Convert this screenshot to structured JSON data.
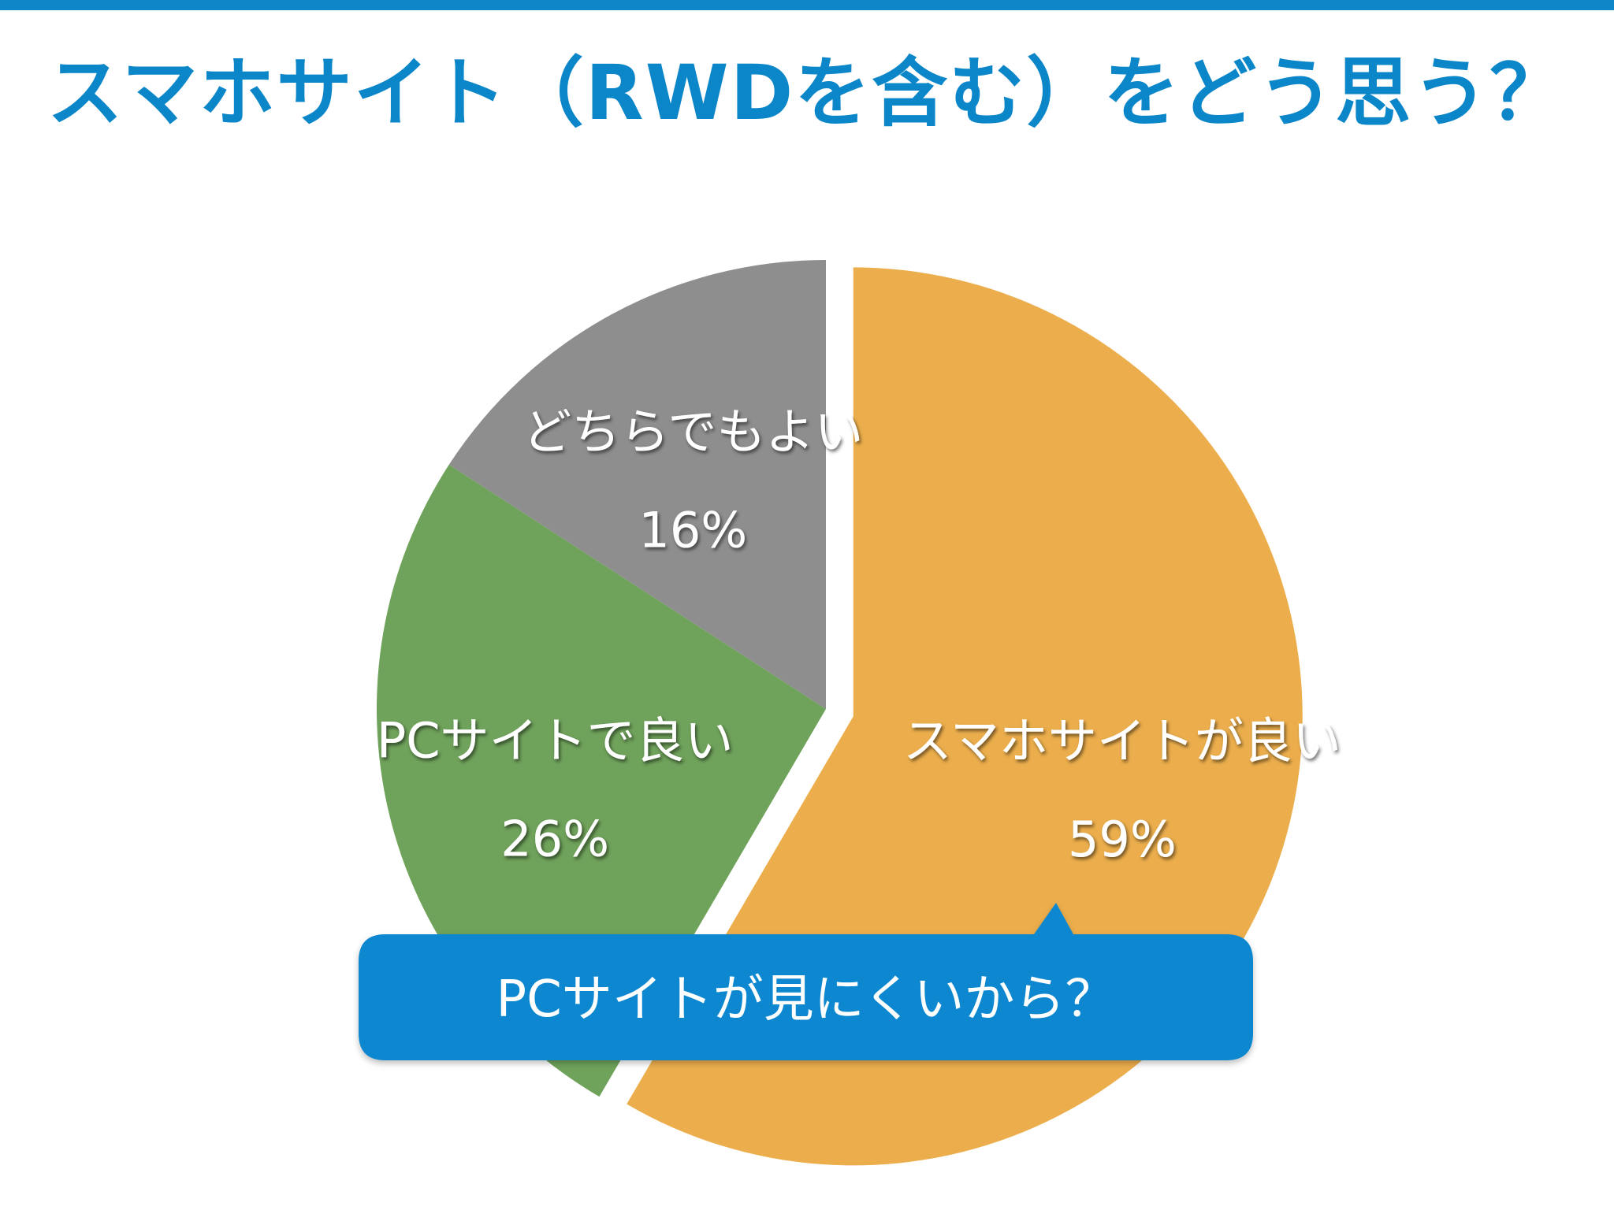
{
  "title": "スマホサイト（RWDを含む）をどう思う？",
  "colors": {
    "accent": "#0f86c8",
    "callout": "#0b88d0"
  },
  "chart_data": {
    "type": "pie",
    "title": "スマホサイト（RWDを含む）をどう思う？",
    "slices": [
      {
        "label": "スマホサイトが良い",
        "value": 59,
        "value_label": "59%",
        "color": "#ecae4c",
        "exploded": true
      },
      {
        "label": "PCサイトで良い",
        "value": 26,
        "value_label": "26%",
        "color": "#6fa25b",
        "exploded": false
      },
      {
        "label": "どちらでもよい",
        "value": 16,
        "value_label": "16%",
        "color": "#8e8e8f",
        "exploded": false
      }
    ],
    "start_angle": "top (12 o'clock), clockwise"
  },
  "callout": {
    "text": "PCサイトが見にくいから？"
  }
}
